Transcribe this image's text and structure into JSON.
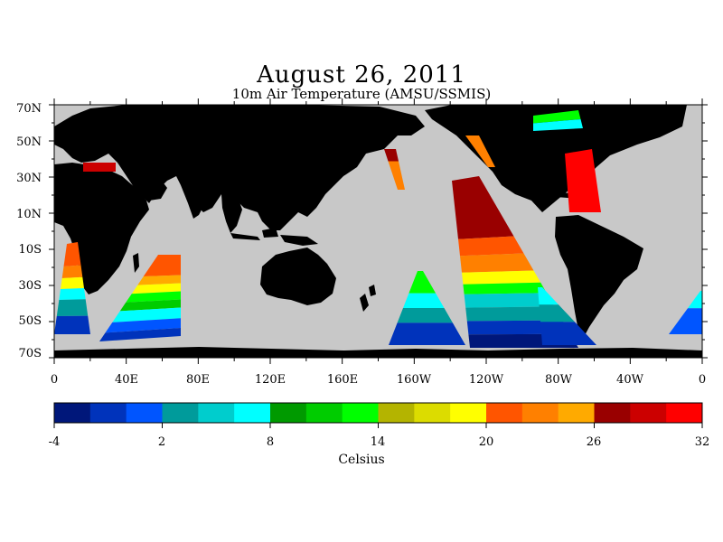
{
  "title": "August 26, 2011",
  "subtitle": "10m Air Temperature (AMSU/SSMIS)",
  "map": {
    "land_color": "#000000",
    "missing_color": "#c8c8c8",
    "lat_labels": [
      "70N",
      "50N",
      "30N",
      "10N",
      "10S",
      "30S",
      "50S",
      "70S"
    ],
    "lon_labels": [
      "0",
      "40E",
      "80E",
      "120E",
      "160E",
      "160W",
      "120W",
      "80W",
      "40W",
      "0"
    ]
  },
  "colorbar": {
    "colors": [
      "#00177a",
      "#0033bb",
      "#0055ff",
      "#009b9b",
      "#00cdcd",
      "#00ffff",
      "#009a00",
      "#00cc00",
      "#00ff00",
      "#b4b400",
      "#dcdc00",
      "#ffff00",
      "#ff5500",
      "#ff8000",
      "#ffaa00",
      "#990000",
      "#cc0000",
      "#ff0000"
    ],
    "tick_labels": [
      "-4",
      "2",
      "8",
      "14",
      "20",
      "26",
      "32"
    ],
    "unit": "Celsius"
  }
}
